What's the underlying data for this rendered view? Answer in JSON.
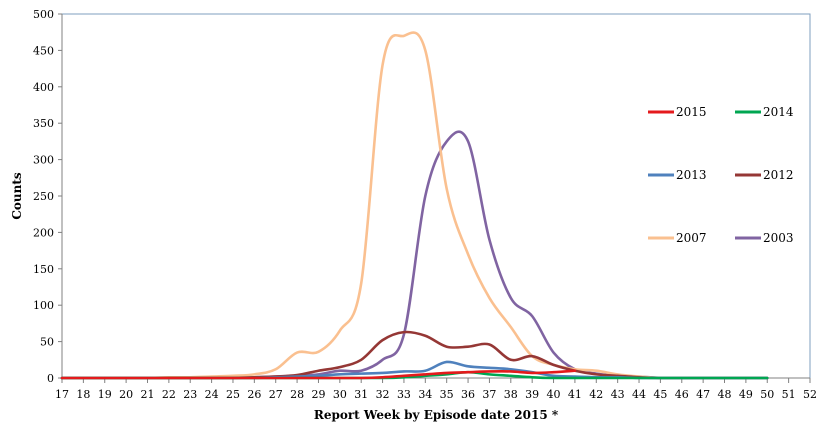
{
  "chart_data": {
    "type": "line",
    "title": "",
    "xlabel": "Report Week by Episode date 2015 *",
    "ylabel": "Counts",
    "x": [
      17,
      18,
      19,
      20,
      21,
      22,
      23,
      24,
      25,
      26,
      27,
      28,
      29,
      30,
      31,
      32,
      33,
      34,
      35,
      36,
      37,
      38,
      39,
      40,
      41,
      42,
      43,
      44,
      45,
      46,
      47,
      48,
      49,
      50,
      51,
      52
    ],
    "xlim": [
      17,
      52
    ],
    "ylim": [
      0,
      500
    ],
    "yticks": [
      0,
      50,
      100,
      150,
      200,
      250,
      300,
      350,
      400,
      450,
      500
    ],
    "grid": false,
    "legend_position": "right",
    "series": [
      {
        "name": "2015",
        "color": "#e41a1c",
        "points": [
          [
            17,
            0
          ],
          [
            18,
            0
          ],
          [
            19,
            0
          ],
          [
            20,
            0
          ],
          [
            21,
            0
          ],
          [
            22,
            0
          ],
          [
            23,
            0
          ],
          [
            24,
            0
          ],
          [
            25,
            0
          ],
          [
            26,
            0
          ],
          [
            27,
            0
          ],
          [
            28,
            0
          ],
          [
            29,
            0
          ],
          [
            30,
            0
          ],
          [
            31,
            0
          ],
          [
            32,
            1
          ],
          [
            33,
            3
          ],
          [
            34,
            5
          ],
          [
            35,
            7
          ],
          [
            36,
            8
          ],
          [
            37,
            9
          ],
          [
            38,
            9
          ],
          [
            39,
            7
          ],
          [
            40,
            8
          ],
          [
            41,
            10
          ]
        ]
      },
      {
        "name": "2014",
        "color": "#00a651",
        "points": [
          [
            17,
            0
          ],
          [
            18,
            0
          ],
          [
            19,
            0
          ],
          [
            20,
            0
          ],
          [
            21,
            0
          ],
          [
            22,
            0
          ],
          [
            23,
            0
          ],
          [
            24,
            0
          ],
          [
            25,
            0
          ],
          [
            26,
            0
          ],
          [
            27,
            0
          ],
          [
            28,
            0
          ],
          [
            29,
            0
          ],
          [
            30,
            0
          ],
          [
            31,
            0
          ],
          [
            32,
            0
          ],
          [
            33,
            1
          ],
          [
            34,
            3
          ],
          [
            35,
            5
          ],
          [
            36,
            8
          ],
          [
            37,
            5
          ],
          [
            38,
            3
          ],
          [
            39,
            1
          ],
          [
            40,
            0
          ],
          [
            41,
            0
          ],
          [
            42,
            0
          ],
          [
            43,
            0
          ],
          [
            44,
            0
          ],
          [
            45,
            0
          ],
          [
            46,
            0
          ],
          [
            47,
            0
          ],
          [
            48,
            0
          ],
          [
            49,
            0
          ],
          [
            50,
            0
          ]
        ]
      },
      {
        "name": "2013",
        "color": "#4f81bd",
        "points": [
          [
            17,
            0
          ],
          [
            18,
            0
          ],
          [
            19,
            0
          ],
          [
            20,
            0
          ],
          [
            21,
            0
          ],
          [
            22,
            0
          ],
          [
            23,
            0
          ],
          [
            24,
            0
          ],
          [
            25,
            0
          ],
          [
            26,
            0
          ],
          [
            27,
            1
          ],
          [
            28,
            2
          ],
          [
            29,
            3
          ],
          [
            30,
            5
          ],
          [
            31,
            6
          ],
          [
            32,
            7
          ],
          [
            33,
            9
          ],
          [
            34,
            10
          ],
          [
            35,
            22
          ],
          [
            36,
            16
          ],
          [
            37,
            14
          ],
          [
            38,
            12
          ],
          [
            39,
            8
          ],
          [
            40,
            3
          ],
          [
            41,
            2
          ],
          [
            42,
            1
          ],
          [
            43,
            1
          ],
          [
            44,
            0
          ],
          [
            45,
            0
          ],
          [
            46,
            0
          ],
          [
            47,
            0
          ],
          [
            48,
            0
          ],
          [
            49,
            0
          ],
          [
            50,
            0
          ]
        ]
      },
      {
        "name": "2012",
        "color": "#953735",
        "points": [
          [
            17,
            0
          ],
          [
            18,
            0
          ],
          [
            19,
            0
          ],
          [
            20,
            0
          ],
          [
            21,
            0
          ],
          [
            22,
            0
          ],
          [
            23,
            0
          ],
          [
            24,
            0
          ],
          [
            25,
            0
          ],
          [
            26,
            1
          ],
          [
            27,
            2
          ],
          [
            28,
            4
          ],
          [
            29,
            10
          ],
          [
            30,
            15
          ],
          [
            31,
            25
          ],
          [
            32,
            52
          ],
          [
            33,
            63
          ],
          [
            34,
            58
          ],
          [
            35,
            43
          ],
          [
            36,
            43
          ],
          [
            37,
            46
          ],
          [
            38,
            25
          ],
          [
            39,
            30
          ],
          [
            40,
            18
          ],
          [
            41,
            10
          ],
          [
            42,
            5
          ],
          [
            43,
            3
          ],
          [
            44,
            1
          ],
          [
            45,
            0
          ],
          [
            46,
            0
          ],
          [
            47,
            0
          ],
          [
            48,
            0
          ],
          [
            49,
            0
          ],
          [
            50,
            0
          ]
        ]
      },
      {
        "name": "2007",
        "color": "#fac090",
        "points": [
          [
            17,
            0
          ],
          [
            18,
            0
          ],
          [
            19,
            0
          ],
          [
            20,
            0
          ],
          [
            21,
            0
          ],
          [
            22,
            1
          ],
          [
            23,
            1
          ],
          [
            24,
            2
          ],
          [
            25,
            3
          ],
          [
            26,
            5
          ],
          [
            27,
            12
          ],
          [
            28,
            35
          ],
          [
            29,
            36
          ],
          [
            30,
            65
          ],
          [
            31,
            130
          ],
          [
            32,
            430
          ],
          [
            33,
            470
          ],
          [
            34,
            450
          ],
          [
            35,
            260
          ],
          [
            36,
            170
          ],
          [
            37,
            110
          ],
          [
            38,
            70
          ],
          [
            39,
            30
          ],
          [
            40,
            18
          ],
          [
            41,
            12
          ],
          [
            42,
            10
          ],
          [
            43,
            5
          ],
          [
            44,
            2
          ],
          [
            45,
            0
          ],
          [
            46,
            0
          ],
          [
            47,
            0
          ],
          [
            48,
            0
          ],
          [
            49,
            0
          ],
          [
            50,
            0
          ]
        ]
      },
      {
        "name": "2003",
        "color": "#8064a2",
        "points": [
          [
            17,
            0
          ],
          [
            18,
            0
          ],
          [
            19,
            0
          ],
          [
            20,
            0
          ],
          [
            21,
            0
          ],
          [
            22,
            0
          ],
          [
            23,
            0
          ],
          [
            24,
            0
          ],
          [
            25,
            0
          ],
          [
            26,
            1
          ],
          [
            27,
            2
          ],
          [
            28,
            3
          ],
          [
            29,
            5
          ],
          [
            30,
            10
          ],
          [
            31,
            10
          ],
          [
            32,
            25
          ],
          [
            33,
            60
          ],
          [
            34,
            250
          ],
          [
            35,
            325
          ],
          [
            36,
            325
          ],
          [
            37,
            190
          ],
          [
            38,
            110
          ],
          [
            39,
            85
          ],
          [
            40,
            35
          ],
          [
            41,
            12
          ],
          [
            42,
            6
          ],
          [
            43,
            3
          ],
          [
            44,
            2
          ],
          [
            45,
            0
          ],
          [
            46,
            0
          ],
          [
            47,
            0
          ],
          [
            48,
            0
          ],
          [
            49,
            0
          ],
          [
            50,
            0
          ]
        ]
      }
    ]
  }
}
